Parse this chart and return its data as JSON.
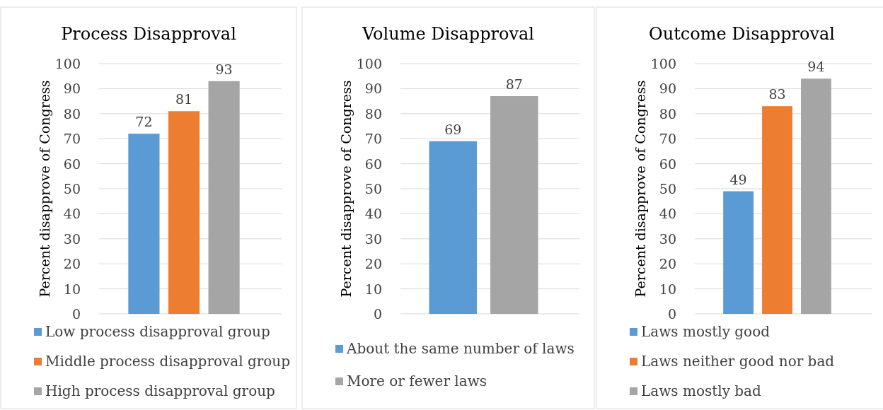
{
  "chart_data": [
    {
      "type": "bar",
      "title": "Process Disapproval",
      "ylabel": "Percent disapprove of Congress",
      "categories": [
        null
      ],
      "series": [
        {
          "name": "Low process disapproval group",
          "color": "#5b9bd5",
          "values": [
            72
          ]
        },
        {
          "name": "Middle process disapproval group",
          "color": "#ed7d31",
          "values": [
            81
          ]
        },
        {
          "name": "High process disapproval group",
          "color": "#a5a5a5",
          "values": [
            93
          ]
        }
      ],
      "ylim": [
        0,
        100
      ],
      "yticks": [
        0,
        10,
        20,
        30,
        40,
        50,
        60,
        70,
        80,
        90,
        100
      ],
      "grid": "y",
      "legend": "bottom",
      "data_labels": true
    },
    {
      "type": "bar",
      "title": "Volume Disapproval",
      "ylabel": "Percent disapprove of Congress",
      "categories": [
        null
      ],
      "series": [
        {
          "name": "About the same number of laws",
          "color": "#5b9bd5",
          "values": [
            69
          ]
        },
        {
          "name": "More or fewer laws",
          "color": "#a5a5a5",
          "values": [
            87
          ]
        }
      ],
      "ylim": [
        0,
        100
      ],
      "yticks": [
        0,
        10,
        20,
        30,
        40,
        50,
        60,
        70,
        80,
        90,
        100
      ],
      "grid": "y",
      "legend": "bottom",
      "data_labels": true
    },
    {
      "type": "bar",
      "title": "Outcome Disapproval",
      "ylabel": "Percent disapprove of Congress",
      "categories": [
        null
      ],
      "series": [
        {
          "name": "Laws mostly good",
          "color": "#5b9bd5",
          "values": [
            49
          ]
        },
        {
          "name": "Laws neither good nor bad",
          "color": "#ed7d31",
          "values": [
            83
          ]
        },
        {
          "name": "Laws mostly bad",
          "color": "#a5a5a5",
          "values": [
            94
          ]
        }
      ],
      "ylim": [
        0,
        100
      ],
      "yticks": [
        0,
        10,
        20,
        30,
        40,
        50,
        60,
        70,
        80,
        90,
        100
      ],
      "grid": "y",
      "legend": "bottom",
      "data_labels": true
    }
  ]
}
